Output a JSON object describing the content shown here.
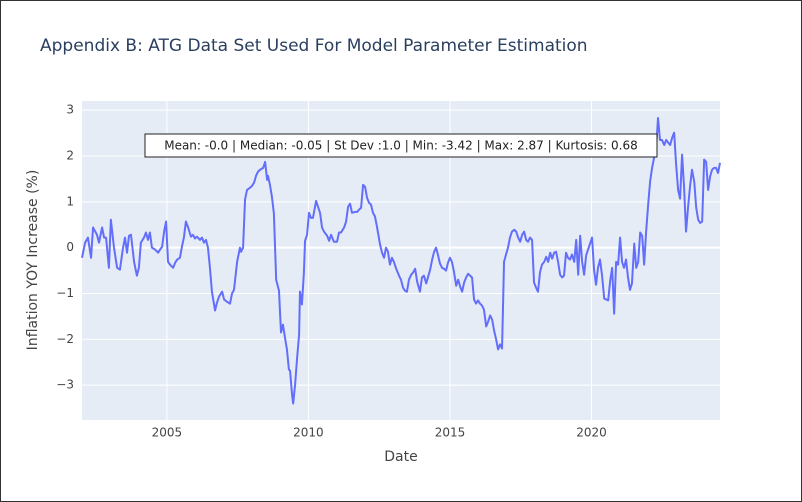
{
  "chart_data": {
    "type": "line",
    "title": "Appendix B: ATG Data Set Used For Model Parameter Estimation",
    "x_label": "Date",
    "y_label": "Inflation YOY Increase (%)",
    "annotation": "Mean: -0.0 | Median: -0.05 | St Dev :1.0 | Min: -3.42 | Max: 2.87 | Kurtosis: 0.68",
    "color": "#636efa",
    "grid": true,
    "xlim": [
      2002.0,
      2024.54
    ],
    "ylim": [
      -3.76,
      3.2
    ],
    "xticks": [
      2005,
      2010,
      2015,
      2020
    ],
    "yticks": [
      {
        "value": -3,
        "label": "−3"
      },
      {
        "value": -2,
        "label": "−2"
      },
      {
        "value": -1,
        "label": "−1"
      },
      0,
      1,
      2,
      3
    ],
    "x": [
      2002.0,
      2002.11,
      2002.21,
      2002.32,
      2002.39,
      2002.53,
      2002.6,
      2002.71,
      2002.78,
      2002.85,
      2002.95,
      2003.02,
      2003.13,
      2003.24,
      2003.34,
      2003.45,
      2003.52,
      2003.59,
      2003.66,
      2003.73,
      2003.84,
      2003.94,
      2004.01,
      2004.08,
      2004.19,
      2004.26,
      2004.33,
      2004.4,
      2004.47,
      2004.58,
      2004.69,
      2004.76,
      2004.83,
      2004.9,
      2004.97,
      2005.04,
      2005.11,
      2005.22,
      2005.29,
      2005.36,
      2005.46,
      2005.53,
      2005.6,
      2005.67,
      2005.75,
      2005.85,
      2005.92,
      2005.99,
      2006.06,
      2006.17,
      2006.24,
      2006.31,
      2006.38,
      2006.45,
      2006.52,
      2006.59,
      2006.7,
      2006.77,
      2006.84,
      2006.95,
      2007.02,
      2007.12,
      2007.23,
      2007.3,
      2007.37,
      2007.48,
      2007.58,
      2007.62,
      2007.69,
      2007.76,
      2007.83,
      2007.94,
      2008.01,
      2008.08,
      2008.15,
      2008.22,
      2008.29,
      2008.4,
      2008.47,
      2008.54,
      2008.57,
      2008.64,
      2008.71,
      2008.78,
      2008.86,
      2008.96,
      2009.03,
      2009.1,
      2009.17,
      2009.24,
      2009.31,
      2009.35,
      2009.42,
      2009.46,
      2009.53,
      2009.6,
      2009.67,
      2009.7,
      2009.77,
      2009.84,
      2009.88,
      2009.95,
      2010.02,
      2010.09,
      2010.16,
      2010.27,
      2010.34,
      2010.41,
      2010.48,
      2010.55,
      2010.66,
      2010.73,
      2010.8,
      2010.9,
      2011.01,
      2011.08,
      2011.15,
      2011.26,
      2011.33,
      2011.4,
      2011.47,
      2011.54,
      2011.65,
      2011.72,
      2011.79,
      2011.86,
      2011.93,
      2012.0,
      2012.07,
      2012.14,
      2012.21,
      2012.28,
      2012.35,
      2012.42,
      2012.53,
      2012.6,
      2012.67,
      2012.74,
      2012.81,
      2012.88,
      2012.95,
      2013.02,
      2013.1,
      2013.2,
      2013.27,
      2013.34,
      2013.41,
      2013.48,
      2013.55,
      2013.63,
      2013.7,
      2013.77,
      2013.84,
      2013.94,
      2014.01,
      2014.08,
      2014.16,
      2014.23,
      2014.3,
      2014.37,
      2014.44,
      2014.51,
      2014.58,
      2014.65,
      2014.72,
      2014.79,
      2014.86,
      2014.93,
      2015.0,
      2015.07,
      2015.14,
      2015.22,
      2015.29,
      2015.36,
      2015.43,
      2015.5,
      2015.57,
      2015.64,
      2015.71,
      2015.78,
      2015.85,
      2015.92,
      2015.99,
      2016.06,
      2016.13,
      2016.2,
      2016.28,
      2016.35,
      2016.42,
      2016.49,
      2016.56,
      2016.63,
      2016.7,
      2016.77,
      2016.84,
      2016.91,
      2016.98,
      2017.05,
      2017.12,
      2017.19,
      2017.27,
      2017.34,
      2017.41,
      2017.48,
      2017.55,
      2017.62,
      2017.69,
      2017.76,
      2017.83,
      2017.9,
      2017.97,
      2018.04,
      2018.11,
      2018.18,
      2018.25,
      2018.33,
      2018.4,
      2018.47,
      2018.54,
      2018.61,
      2018.68,
      2018.75,
      2018.82,
      2018.89,
      2018.96,
      2019.03,
      2019.1,
      2019.17,
      2019.24,
      2019.31,
      2019.39,
      2019.46,
      2019.53,
      2019.6,
      2019.67,
      2019.74,
      2019.81,
      2019.88,
      2019.95,
      2020.02,
      2020.09,
      2020.16,
      2020.23,
      2020.3,
      2020.37,
      2020.45,
      2020.52,
      2020.59,
      2020.66,
      2020.73,
      2020.8,
      2020.87,
      2020.94,
      2021.01,
      2021.08,
      2021.15,
      2021.22,
      2021.29,
      2021.36,
      2021.43,
      2021.51,
      2021.58,
      2021.65,
      2021.72,
      2021.79,
      2021.86,
      2021.93,
      2022.0,
      2022.07,
      2022.14,
      2022.21,
      2022.28,
      2022.35,
      2022.42,
      2022.49,
      2022.57,
      2022.64,
      2022.71,
      2022.78,
      2022.85,
      2022.92,
      2022.99,
      2023.06,
      2023.13,
      2023.2,
      2023.27,
      2023.34,
      2023.41,
      2023.48,
      2023.55,
      2023.63,
      2023.7,
      2023.77,
      2023.84,
      2023.91,
      2023.98,
      2024.05,
      2024.12,
      2024.19,
      2024.26,
      2024.33,
      2024.4,
      2024.47,
      2024.54
    ],
    "values": [
      -0.22,
      0.11,
      0.22,
      -0.22,
      0.44,
      0.28,
      0.11,
      0.44,
      0.22,
      0.22,
      -0.44,
      0.61,
      0.0,
      -0.44,
      -0.48,
      0.0,
      0.22,
      -0.11,
      0.26,
      0.28,
      -0.31,
      -0.61,
      -0.44,
      0.11,
      0.22,
      0.33,
      0.17,
      0.33,
      0.0,
      -0.04,
      -0.11,
      -0.04,
      0.02,
      0.35,
      0.57,
      -0.31,
      -0.37,
      -0.44,
      -0.33,
      -0.26,
      -0.22,
      0.02,
      0.22,
      0.57,
      0.44,
      0.24,
      0.28,
      0.2,
      0.24,
      0.17,
      0.22,
      0.11,
      0.17,
      0.0,
      -0.44,
      -0.96,
      -1.37,
      -1.2,
      -1.07,
      -0.96,
      -1.13,
      -1.18,
      -1.22,
      -1.0,
      -0.92,
      -0.31,
      0.0,
      -0.09,
      0.0,
      1.05,
      1.26,
      1.31,
      1.35,
      1.42,
      1.57,
      1.66,
      1.7,
      1.74,
      1.87,
      1.48,
      1.57,
      1.37,
      1.11,
      0.74,
      -0.7,
      -0.94,
      -1.85,
      -1.68,
      -1.96,
      -2.22,
      -2.66,
      -2.68,
      -3.2,
      -3.4,
      -2.98,
      -2.4,
      -1.9,
      -0.96,
      -1.24,
      -0.54,
      0.15,
      0.28,
      0.76,
      0.65,
      0.65,
      1.02,
      0.89,
      0.76,
      0.44,
      0.35,
      0.26,
      0.15,
      0.28,
      0.13,
      0.13,
      0.33,
      0.33,
      0.44,
      0.57,
      0.89,
      0.96,
      0.76,
      0.78,
      0.78,
      0.83,
      0.87,
      1.37,
      1.33,
      1.09,
      0.98,
      0.94,
      0.76,
      0.68,
      0.46,
      0.07,
      -0.11,
      -0.22,
      0.0,
      -0.09,
      -0.37,
      -0.22,
      -0.31,
      -0.46,
      -0.61,
      -0.7,
      -0.87,
      -0.94,
      -0.96,
      -0.7,
      -0.59,
      -0.54,
      -0.46,
      -0.74,
      -0.96,
      -0.65,
      -0.61,
      -0.78,
      -0.63,
      -0.48,
      -0.26,
      -0.09,
      0.0,
      -0.17,
      -0.35,
      -0.44,
      -0.46,
      -0.5,
      -0.33,
      -0.22,
      -0.31,
      -0.52,
      -0.83,
      -0.7,
      -0.85,
      -0.96,
      -0.76,
      -0.65,
      -0.57,
      -0.61,
      -0.65,
      -1.13,
      -1.22,
      -1.15,
      -1.22,
      -1.26,
      -1.35,
      -1.72,
      -1.61,
      -1.48,
      -1.57,
      -1.81,
      -2.0,
      -2.22,
      -2.11,
      -2.2,
      -0.31,
      -0.15,
      0.0,
      0.22,
      0.35,
      0.39,
      0.35,
      0.22,
      0.13,
      0.28,
      0.35,
      0.17,
      0.13,
      0.22,
      0.17,
      -0.76,
      -0.87,
      -0.96,
      -0.54,
      -0.37,
      -0.31,
      -0.2,
      -0.31,
      -0.11,
      -0.24,
      -0.11,
      -0.09,
      -0.31,
      -0.59,
      -0.65,
      -0.61,
      -0.11,
      -0.22,
      -0.26,
      -0.15,
      -0.31,
      0.17,
      -0.59,
      0.26,
      -0.31,
      -0.59,
      -0.17,
      -0.04,
      0.09,
      0.22,
      -0.48,
      -0.81,
      -0.44,
      -0.26,
      -0.59,
      -1.11,
      -1.13,
      -1.15,
      -0.72,
      -0.44,
      -1.44,
      -0.31,
      -0.37,
      0.22,
      -0.31,
      -0.44,
      -0.26,
      -0.65,
      -0.92,
      -0.78,
      0.09,
      -0.44,
      -0.31,
      0.33,
      0.26,
      -0.37,
      0.35,
      0.92,
      1.44,
      1.74,
      1.96,
      2.14,
      2.83,
      2.35,
      2.35,
      2.24,
      2.35,
      2.29,
      2.24,
      2.4,
      2.51,
      1.81,
      1.26,
      1.07,
      2.03,
      1.33,
      0.35,
      0.87,
      1.33,
      1.7,
      1.44,
      0.87,
      0.61,
      0.54,
      0.57,
      1.92,
      1.87,
      1.26,
      1.55,
      1.7,
      1.74,
      1.74,
      1.63,
      1.85
    ]
  }
}
